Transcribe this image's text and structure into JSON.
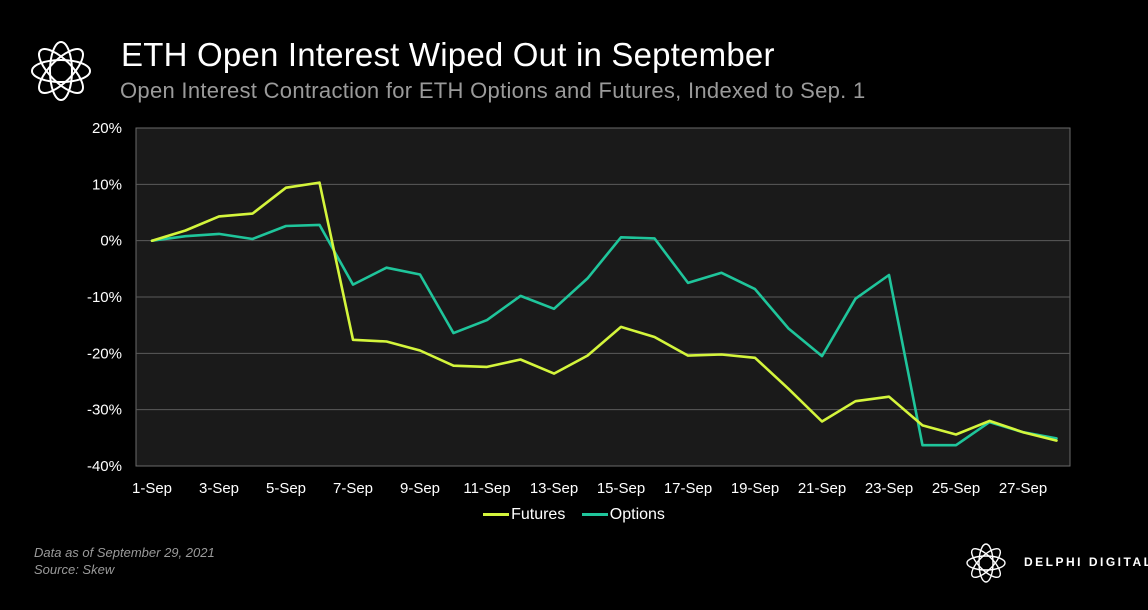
{
  "header": {
    "title": "ETH Open Interest Wiped Out in September",
    "subtitle": "Open Interest Contraction for ETH Options and Futures, Indexed to Sep. 1"
  },
  "footer": {
    "data_note": "Data as of September 29, 2021",
    "source": "Source:  Skew"
  },
  "brand": {
    "name": "DELPHI DIGITAL"
  },
  "colors": {
    "futures": "#d4f53c",
    "options": "#1fc59b",
    "background": "#000000",
    "plot_bg": "#1a1a1a",
    "grid": "#5a5a5a"
  },
  "chart_data": {
    "type": "line",
    "title": "ETH Open Interest Wiped Out in September",
    "subtitle": "Open Interest Contraction for ETH Options and Futures, Indexed to Sep. 1",
    "x": [
      "1-Sep",
      "2-Sep",
      "3-Sep",
      "4-Sep",
      "5-Sep",
      "6-Sep",
      "7-Sep",
      "8-Sep",
      "9-Sep",
      "10-Sep",
      "11-Sep",
      "12-Sep",
      "13-Sep",
      "14-Sep",
      "15-Sep",
      "16-Sep",
      "17-Sep",
      "18-Sep",
      "19-Sep",
      "20-Sep",
      "21-Sep",
      "22-Sep",
      "23-Sep",
      "24-Sep",
      "25-Sep",
      "26-Sep",
      "27-Sep",
      "28-Sep"
    ],
    "x_tick_labels": [
      "1-Sep",
      "3-Sep",
      "5-Sep",
      "7-Sep",
      "9-Sep",
      "11-Sep",
      "13-Sep",
      "15-Sep",
      "17-Sep",
      "19-Sep",
      "21-Sep",
      "23-Sep",
      "25-Sep",
      "27-Sep"
    ],
    "y_tick_labels": [
      "20%",
      "10%",
      "0%",
      "-10%",
      "-20%",
      "-30%",
      "-40%"
    ],
    "y_ticks": [
      20,
      10,
      0,
      -10,
      -20,
      -30,
      -40
    ],
    "ylim": [
      -40,
      20
    ],
    "xlabel": "",
    "ylabel": "",
    "grid": true,
    "legend": "bottom",
    "series": [
      {
        "name": "Futures",
        "values": [
          0,
          1.8,
          4.3,
          4.8,
          9.4,
          10.3,
          -17.6,
          -17.9,
          -19.5,
          -22.2,
          -22.4,
          -21.1,
          -23.6,
          -20.4,
          -15.3,
          -17.1,
          -20.4,
          -20.2,
          -20.8,
          -26.3,
          -32.1,
          -28.5,
          -27.7,
          -32.8,
          -34.4,
          -32.0,
          -34.0,
          -35.5
        ]
      },
      {
        "name": "Options",
        "values": [
          0,
          0.8,
          1.2,
          0.3,
          2.6,
          2.8,
          -7.8,
          -4.8,
          -6.0,
          -16.4,
          -14.1,
          -9.8,
          -12.1,
          -6.7,
          0.6,
          0.4,
          -7.5,
          -5.7,
          -8.6,
          -15.6,
          -20.5,
          -10.3,
          -6.1,
          -36.3,
          -36.3,
          -32.2,
          -34.0,
          -35.1
        ]
      }
    ]
  }
}
